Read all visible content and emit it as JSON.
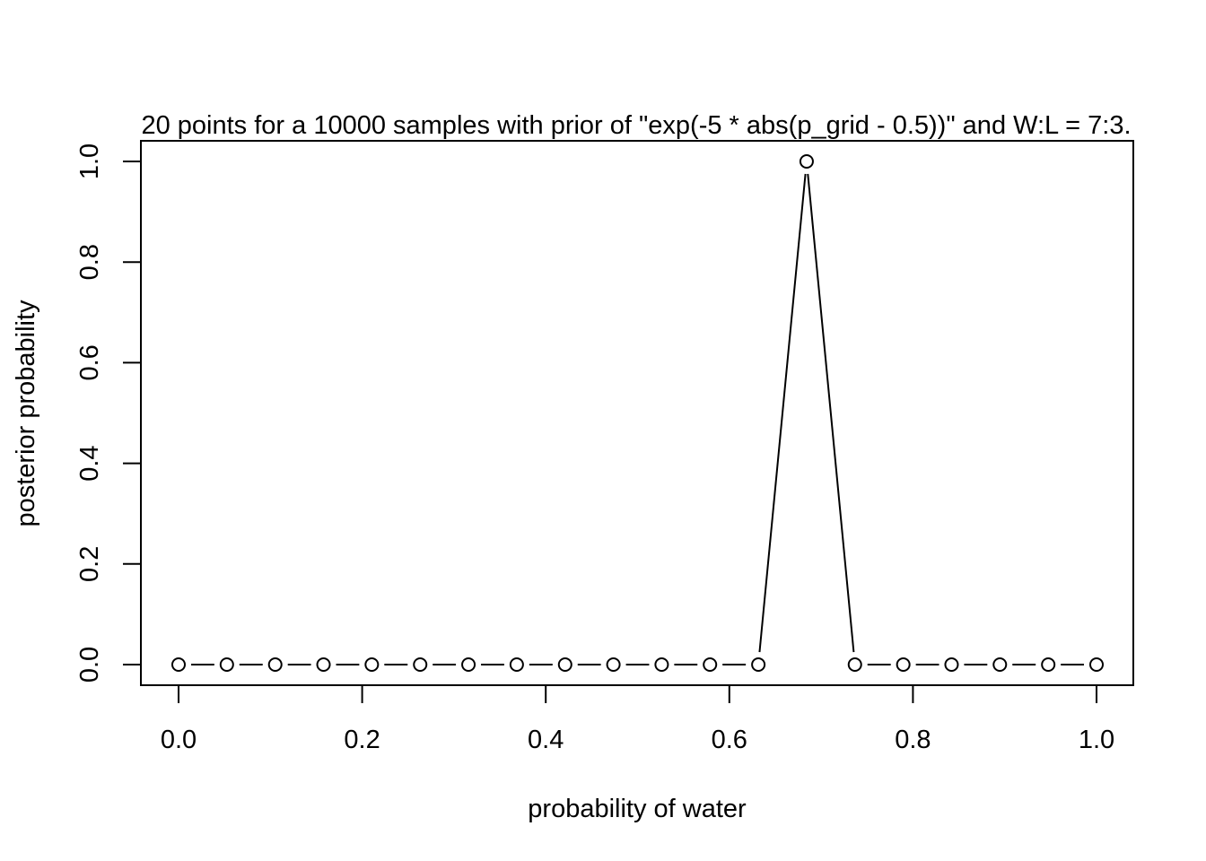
{
  "chart_data": {
    "type": "line",
    "title": "20 points for a 10000 samples with prior of \"exp(-5 * abs(p_grid - 0.5))\" and W:L = 7:3.",
    "xlabel": "probability of water",
    "ylabel": "posterior probability",
    "xlim": [
      0,
      1
    ],
    "ylim": [
      0,
      1
    ],
    "x_ticks": [
      0.0,
      0.2,
      0.4,
      0.6,
      0.8,
      1.0
    ],
    "x_tick_labels": [
      "0.0",
      "0.2",
      "0.4",
      "0.6",
      "0.8",
      "1.0"
    ],
    "y_ticks": [
      0.0,
      0.2,
      0.4,
      0.6,
      0.8,
      1.0
    ],
    "y_tick_labels": [
      "0.0",
      "0.2",
      "0.4",
      "0.6",
      "0.8",
      "1.0"
    ],
    "grid": false,
    "marker": "open-circle",
    "x": [
      0.0,
      0.0526,
      0.1053,
      0.1579,
      0.2105,
      0.2632,
      0.3158,
      0.3684,
      0.4211,
      0.4737,
      0.5263,
      0.5789,
      0.6316,
      0.6842,
      0.7368,
      0.7895,
      0.8421,
      0.8947,
      0.9474,
      1.0
    ],
    "y": [
      0,
      0,
      0,
      0,
      0,
      0,
      0,
      0,
      0,
      0,
      0,
      0,
      0,
      1.0,
      0,
      0,
      0,
      0,
      0,
      0
    ],
    "colors": {
      "line": "#000000",
      "marker_fill": "#ffffff",
      "background": "#ffffff"
    }
  }
}
